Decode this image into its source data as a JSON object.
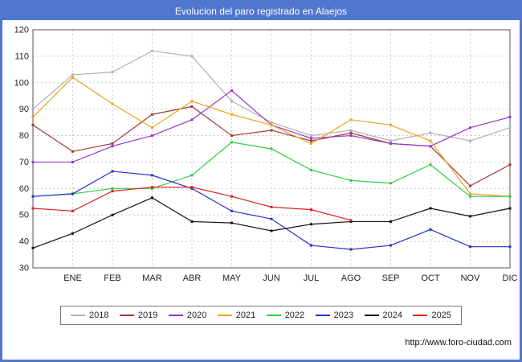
{
  "title": "Evolucion del paro registrado en Alaejos",
  "footer": {
    "url": "http://www.foro-ciudad.com"
  },
  "colors": {
    "accent": "#5176ce",
    "grid": "#cccccc",
    "axis_box": "#555555",
    "tick_text": "#222222"
  },
  "chart_data": {
    "type": "line",
    "title": "Evolucion del paro registrado en Alaejos",
    "xlabel": "",
    "ylabel": "",
    "ylim": [
      30,
      120
    ],
    "yticks": [
      30,
      40,
      50,
      60,
      70,
      80,
      90,
      100,
      110,
      120
    ],
    "grid": true,
    "legend_position": "bottom",
    "x": [
      "",
      "ENE",
      "FEB",
      "MAR",
      "ABR",
      "MAY",
      "JUN",
      "JUL",
      "AGO",
      "SEP",
      "OCT",
      "NOV",
      "DIC"
    ],
    "series": [
      {
        "name": "2018",
        "color": "#b0b0b0",
        "values": [
          90,
          103,
          104,
          112,
          110,
          93,
          85,
          80,
          82,
          78,
          81,
          78,
          83
        ]
      },
      {
        "name": "2019",
        "color": "#a03636",
        "values": [
          84,
          74,
          77,
          88,
          91,
          80,
          82,
          78,
          81,
          77,
          76,
          61,
          69
        ]
      },
      {
        "name": "2020",
        "color": "#9933cc",
        "values": [
          70,
          70,
          76,
          80,
          86,
          97,
          84,
          79,
          80,
          77,
          76,
          83,
          87
        ]
      },
      {
        "name": "2021",
        "color": "#efa321",
        "values": [
          87,
          102,
          92,
          83,
          93,
          88,
          84,
          77,
          86,
          84,
          78,
          58,
          57
        ]
      },
      {
        "name": "2022",
        "color": "#2ecc40",
        "values": [
          57,
          58,
          60,
          60,
          65,
          77.5,
          75,
          67,
          63,
          62,
          69,
          57,
          57
        ]
      },
      {
        "name": "2023",
        "color": "#2233cc",
        "values": [
          57,
          58,
          66.5,
          65,
          60,
          51.5,
          48.5,
          38.5,
          37,
          38.5,
          44.5,
          38,
          38
        ]
      },
      {
        "name": "2024",
        "color": "#111111",
        "values": [
          37.5,
          43,
          50,
          56.5,
          47.5,
          47,
          44,
          46.5,
          47.5,
          47.5,
          52.5,
          49.5,
          52.5
        ]
      },
      {
        "name": "2025",
        "color": "#dd2222",
        "values": [
          52.5,
          51.5,
          59,
          60.5,
          60.5,
          57,
          53,
          52,
          48,
          null,
          null,
          null,
          null
        ]
      }
    ]
  }
}
